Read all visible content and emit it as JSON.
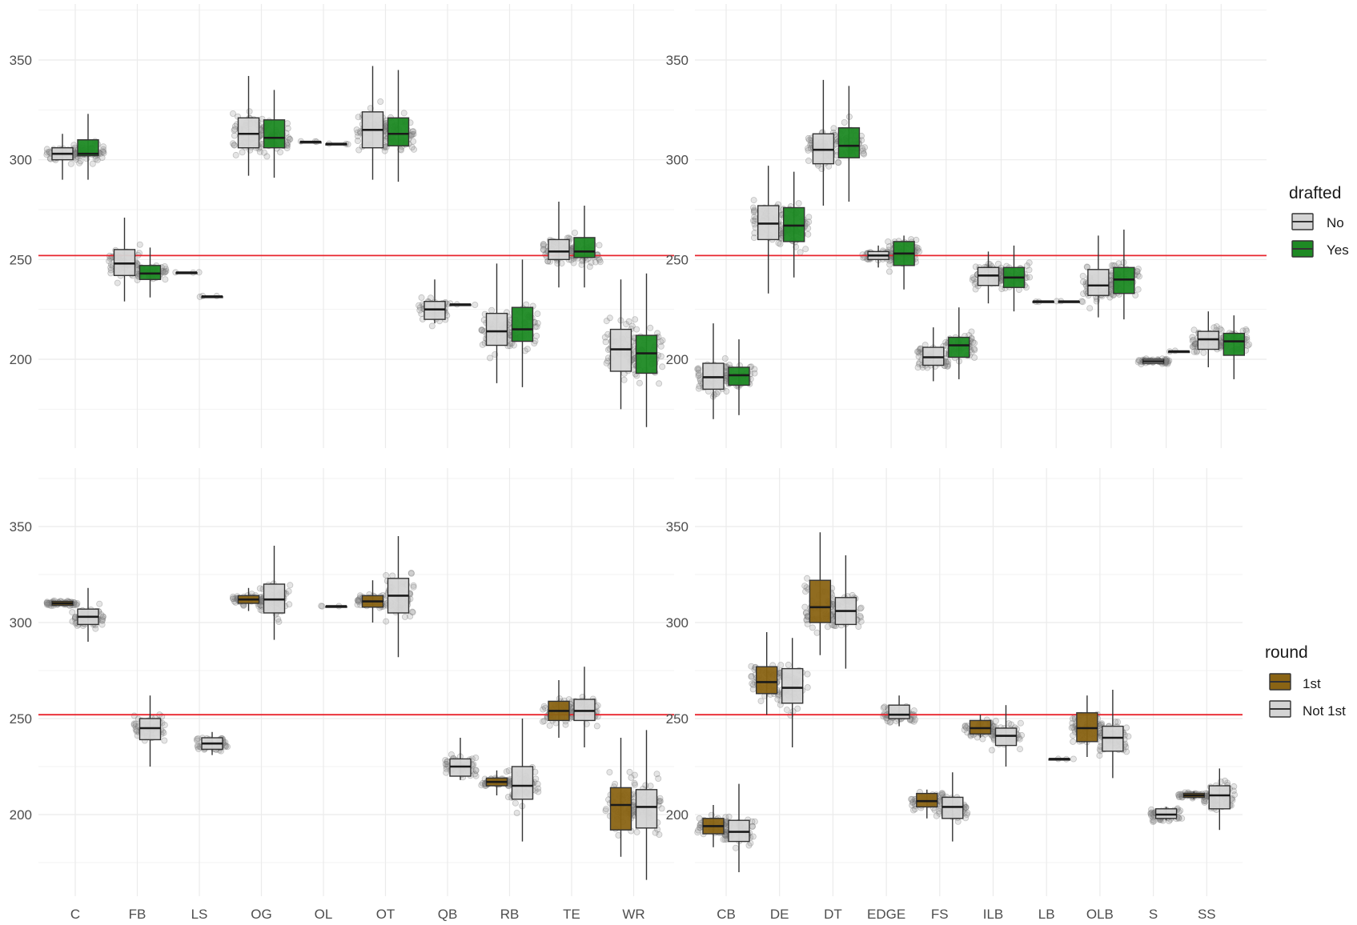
{
  "chart_data": [
    {
      "type": "boxplot",
      "id": "offense-drafted",
      "categories": [
        "C",
        "FB",
        "LS",
        "OG",
        "OL",
        "OT",
        "QB",
        "RB",
        "TE",
        "WR"
      ],
      "y_ticks": [
        200,
        250,
        300,
        350
      ],
      "ylim": [
        163,
        372
      ],
      "reference_line": 252,
      "legend_title": "drafted",
      "series": [
        {
          "name": "No",
          "color": "#d4d4d4",
          "boxes": [
            {
              "cat": "C",
              "q1": 300,
              "med": 303,
              "q3": 306,
              "lo": 290,
              "hi": 313
            },
            {
              "cat": "FB",
              "q1": 242,
              "med": 248,
              "q3": 255,
              "lo": 229,
              "hi": 271
            },
            {
              "cat": "LS",
              "q1": 243.5,
              "med": 243.5,
              "q3": 243.5,
              "lo": 243.5,
              "hi": 243.5
            },
            {
              "cat": "OG",
              "q1": 306,
              "med": 313,
              "q3": 321,
              "lo": 292,
              "hi": 342
            },
            {
              "cat": "OL",
              "q1": 309,
              "med": 309,
              "q3": 309,
              "lo": 309,
              "hi": 309
            },
            {
              "cat": "OT",
              "q1": 306,
              "med": 315,
              "q3": 324,
              "lo": 290,
              "hi": 347
            },
            {
              "cat": "QB",
              "q1": 220,
              "med": 225,
              "q3": 229,
              "lo": 218,
              "hi": 240
            },
            {
              "cat": "RB",
              "q1": 207,
              "med": 214,
              "q3": 223,
              "lo": 188,
              "hi": 248
            },
            {
              "cat": "TE",
              "q1": 250,
              "med": 254,
              "q3": 260,
              "lo": 236,
              "hi": 279
            },
            {
              "cat": "WR",
              "q1": 194,
              "med": 205,
              "q3": 215,
              "lo": 175,
              "hi": 240
            }
          ]
        },
        {
          "name": "Yes",
          "color": "#1e8a24",
          "boxes": [
            {
              "cat": "C",
              "q1": 302,
              "med": 303,
              "q3": 310,
              "lo": 290,
              "hi": 323
            },
            {
              "cat": "FB",
              "q1": 240,
              "med": 243,
              "q3": 247,
              "lo": 231,
              "hi": 256
            },
            {
              "cat": "LS",
              "q1": 231.5,
              "med": 231.5,
              "q3": 231.5,
              "lo": 231.5,
              "hi": 231.5
            },
            {
              "cat": "OG",
              "q1": 306,
              "med": 311,
              "q3": 320,
              "lo": 291,
              "hi": 335
            },
            {
              "cat": "OL",
              "q1": 308,
              "med": 308,
              "q3": 308,
              "lo": 308,
              "hi": 308
            },
            {
              "cat": "OT",
              "q1": 307,
              "med": 313,
              "q3": 321,
              "lo": 289,
              "hi": 345
            },
            {
              "cat": "QB",
              "q1": 227.5,
              "med": 227.5,
              "q3": 227.5,
              "lo": 227.5,
              "hi": 227.5
            },
            {
              "cat": "RB",
              "q1": 209,
              "med": 215,
              "q3": 226,
              "lo": 186,
              "hi": 250
            },
            {
              "cat": "TE",
              "q1": 251,
              "med": 254,
              "q3": 261,
              "lo": 236,
              "hi": 277
            },
            {
              "cat": "WR",
              "q1": 193,
              "med": 203,
              "q3": 212,
              "lo": 166,
              "hi": 243
            }
          ]
        }
      ]
    },
    {
      "type": "boxplot",
      "id": "defense-drafted",
      "categories": [
        "CB",
        "DE",
        "DT",
        "EDGE",
        "FS",
        "ILB",
        "LB",
        "OLB",
        "S",
        "SS"
      ],
      "y_ticks": [
        200,
        250,
        300,
        350
      ],
      "ylim": [
        163,
        372
      ],
      "reference_line": 252,
      "legend_title": "drafted",
      "series": [
        {
          "name": "No",
          "color": "#d4d4d4",
          "boxes": [
            {
              "cat": "CB",
              "q1": 185,
              "med": 191,
              "q3": 198,
              "lo": 170,
              "hi": 218
            },
            {
              "cat": "DE",
              "q1": 260,
              "med": 268,
              "q3": 277,
              "lo": 233,
              "hi": 297
            },
            {
              "cat": "DT",
              "q1": 298,
              "med": 305,
              "q3": 313,
              "lo": 277,
              "hi": 340
            },
            {
              "cat": "EDGE",
              "q1": 250,
              "med": 252,
              "q3": 254,
              "lo": 246,
              "hi": 257
            },
            {
              "cat": "FS",
              "q1": 197,
              "med": 201,
              "q3": 206,
              "lo": 189,
              "hi": 216
            },
            {
              "cat": "ILB",
              "q1": 237,
              "med": 242,
              "q3": 246,
              "lo": 228,
              "hi": 254
            },
            {
              "cat": "LB",
              "q1": 229,
              "med": 229,
              "q3": 229,
              "lo": 229,
              "hi": 229
            },
            {
              "cat": "OLB",
              "q1": 232,
              "med": 237,
              "q3": 245,
              "lo": 221,
              "hi": 262
            },
            {
              "cat": "S",
              "q1": 198,
              "med": 199,
              "q3": 200,
              "lo": 198,
              "hi": 200
            },
            {
              "cat": "SS",
              "q1": 205,
              "med": 210,
              "q3": 214,
              "lo": 196,
              "hi": 224
            }
          ]
        },
        {
          "name": "Yes",
          "color": "#1e8a24",
          "boxes": [
            {
              "cat": "CB",
              "q1": 187,
              "med": 192,
              "q3": 196,
              "lo": 172,
              "hi": 210
            },
            {
              "cat": "DE",
              "q1": 259,
              "med": 267,
              "q3": 276,
              "lo": 241,
              "hi": 294
            },
            {
              "cat": "DT",
              "q1": 301,
              "med": 307,
              "q3": 316,
              "lo": 279,
              "hi": 337
            },
            {
              "cat": "EDGE",
              "q1": 247,
              "med": 253,
              "q3": 259,
              "lo": 235,
              "hi": 262
            },
            {
              "cat": "FS",
              "q1": 201,
              "med": 207,
              "q3": 211,
              "lo": 190,
              "hi": 226
            },
            {
              "cat": "ILB",
              "q1": 236,
              "med": 241,
              "q3": 246,
              "lo": 224,
              "hi": 257
            },
            {
              "cat": "LB",
              "q1": 229,
              "med": 229,
              "q3": 229,
              "lo": 229,
              "hi": 229
            },
            {
              "cat": "OLB",
              "q1": 233,
              "med": 240,
              "q3": 246,
              "lo": 220,
              "hi": 265
            },
            {
              "cat": "S",
              "q1": 204,
              "med": 204,
              "q3": 204,
              "lo": 204,
              "hi": 204
            },
            {
              "cat": "SS",
              "q1": 202,
              "med": 209,
              "q3": 213,
              "lo": 190,
              "hi": 222
            }
          ]
        }
      ]
    },
    {
      "type": "boxplot",
      "id": "offense-round",
      "categories": [
        "C",
        "FB",
        "LS",
        "OG",
        "OL",
        "OT",
        "QB",
        "RB",
        "TE",
        "WR"
      ],
      "y_ticks": [
        200,
        250,
        300,
        350
      ],
      "ylim": [
        163,
        372
      ],
      "reference_line": 252,
      "legend_title": "round",
      "series": [
        {
          "name": "1st",
          "color": "#8a6414",
          "boxes": [
            {
              "cat": "C",
              "q1": 309,
              "med": 310,
              "q3": 311,
              "lo": 309,
              "hi": 311
            },
            {
              "cat": "OG",
              "q1": 310,
              "med": 312,
              "q3": 314,
              "lo": 306,
              "hi": 318
            },
            {
              "cat": "OT",
              "q1": 308,
              "med": 311,
              "q3": 314,
              "lo": 300,
              "hi": 322
            },
            {
              "cat": "RB",
              "q1": 215,
              "med": 217,
              "q3": 219,
              "lo": 210,
              "hi": 223
            },
            {
              "cat": "TE",
              "q1": 249,
              "med": 254,
              "q3": 259,
              "lo": 240,
              "hi": 270
            },
            {
              "cat": "WR",
              "q1": 192,
              "med": 205,
              "q3": 214,
              "lo": 178,
              "hi": 240
            }
          ]
        },
        {
          "name": "Not 1st",
          "color": "#d4d4d4",
          "boxes": [
            {
              "cat": "C",
              "q1": 299,
              "med": 303,
              "q3": 307,
              "lo": 290,
              "hi": 318
            },
            {
              "cat": "FB",
              "q1": 239,
              "med": 245,
              "q3": 250,
              "lo": 225,
              "hi": 262
            },
            {
              "cat": "LS",
              "q1": 234,
              "med": 237,
              "q3": 240,
              "lo": 231,
              "hi": 243
            },
            {
              "cat": "OG",
              "q1": 305,
              "med": 312,
              "q3": 320,
              "lo": 291,
              "hi": 340
            },
            {
              "cat": "OL",
              "q1": 308.5,
              "med": 308.5,
              "q3": 308.5,
              "lo": 308.5,
              "hi": 308.5
            },
            {
              "cat": "OT",
              "q1": 305,
              "med": 314,
              "q3": 323,
              "lo": 282,
              "hi": 345
            },
            {
              "cat": "QB",
              "q1": 220,
              "med": 225,
              "q3": 229,
              "lo": 218,
              "hi": 240
            },
            {
              "cat": "RB",
              "q1": 208,
              "med": 215,
              "q3": 225,
              "lo": 186,
              "hi": 250
            },
            {
              "cat": "TE",
              "q1": 249,
              "med": 254,
              "q3": 260,
              "lo": 235,
              "hi": 277
            },
            {
              "cat": "WR",
              "q1": 193,
              "med": 204,
              "q3": 213,
              "lo": 166,
              "hi": 244
            }
          ]
        }
      ]
    },
    {
      "type": "boxplot",
      "id": "defense-round",
      "categories": [
        "CB",
        "DE",
        "DT",
        "EDGE",
        "FS",
        "ILB",
        "LB",
        "OLB",
        "S",
        "SS"
      ],
      "y_ticks": [
        200,
        250,
        300,
        350
      ],
      "ylim": [
        163,
        372
      ],
      "reference_line": 252,
      "legend_title": "round",
      "series": [
        {
          "name": "1st",
          "color": "#8a6414",
          "boxes": [
            {
              "cat": "CB",
              "q1": 190,
              "med": 194,
              "q3": 198,
              "lo": 183,
              "hi": 205
            },
            {
              "cat": "DE",
              "q1": 263,
              "med": 269,
              "q3": 277,
              "lo": 252,
              "hi": 295
            },
            {
              "cat": "DT",
              "q1": 300,
              "med": 308,
              "q3": 322,
              "lo": 283,
              "hi": 347
            },
            {
              "cat": "FS",
              "q1": 204,
              "med": 207,
              "q3": 211,
              "lo": 198,
              "hi": 213
            },
            {
              "cat": "ILB",
              "q1": 242,
              "med": 245,
              "q3": 249,
              "lo": 240,
              "hi": 252
            },
            {
              "cat": "OLB",
              "q1": 238,
              "med": 245,
              "q3": 253,
              "lo": 230,
              "hi": 262
            },
            {
              "cat": "SS",
              "q1": 209,
              "med": 210,
              "q3": 211,
              "lo": 208,
              "hi": 212
            }
          ]
        },
        {
          "name": "Not 1st",
          "color": "#d4d4d4",
          "boxes": [
            {
              "cat": "CB",
              "q1": 186,
              "med": 191,
              "q3": 197,
              "lo": 170,
              "hi": 216
            },
            {
              "cat": "DE",
              "q1": 258,
              "med": 266,
              "q3": 276,
              "lo": 235,
              "hi": 292
            },
            {
              "cat": "DT",
              "q1": 299,
              "med": 306,
              "q3": 313,
              "lo": 276,
              "hi": 335
            },
            {
              "cat": "EDGE",
              "q1": 250,
              "med": 252,
              "q3": 257,
              "lo": 246,
              "hi": 262
            },
            {
              "cat": "FS",
              "q1": 198,
              "med": 204,
              "q3": 209,
              "lo": 186,
              "hi": 222
            },
            {
              "cat": "ILB",
              "q1": 236,
              "med": 241,
              "q3": 245,
              "lo": 225,
              "hi": 257
            },
            {
              "cat": "LB",
              "q1": 229,
              "med": 229,
              "q3": 229,
              "lo": 229,
              "hi": 229
            },
            {
              "cat": "OLB",
              "q1": 233,
              "med": 240,
              "q3": 246,
              "lo": 219,
              "hi": 265
            },
            {
              "cat": "S",
              "q1": 198,
              "med": 200,
              "q3": 203,
              "lo": 197,
              "hi": 204
            },
            {
              "cat": "SS",
              "q1": 203,
              "med": 210,
              "q3": 215,
              "lo": 192,
              "hi": 224
            }
          ]
        }
      ]
    }
  ],
  "legends": [
    {
      "title": "drafted",
      "items": [
        {
          "label": "No",
          "color": "#d4d4d4"
        },
        {
          "label": "Yes",
          "color": "#1e8a24"
        }
      ]
    },
    {
      "title": "round",
      "items": [
        {
          "label": "1st",
          "color": "#8a6414"
        },
        {
          "label": "Not 1st",
          "color": "#d4d4d4"
        }
      ]
    }
  ],
  "colors": {
    "gridline": "#ebebeb",
    "reference_line": "#e8252e",
    "axis_text": "#4d4d4d",
    "box_outline": "#333333",
    "jitter_points": "#888888"
  }
}
